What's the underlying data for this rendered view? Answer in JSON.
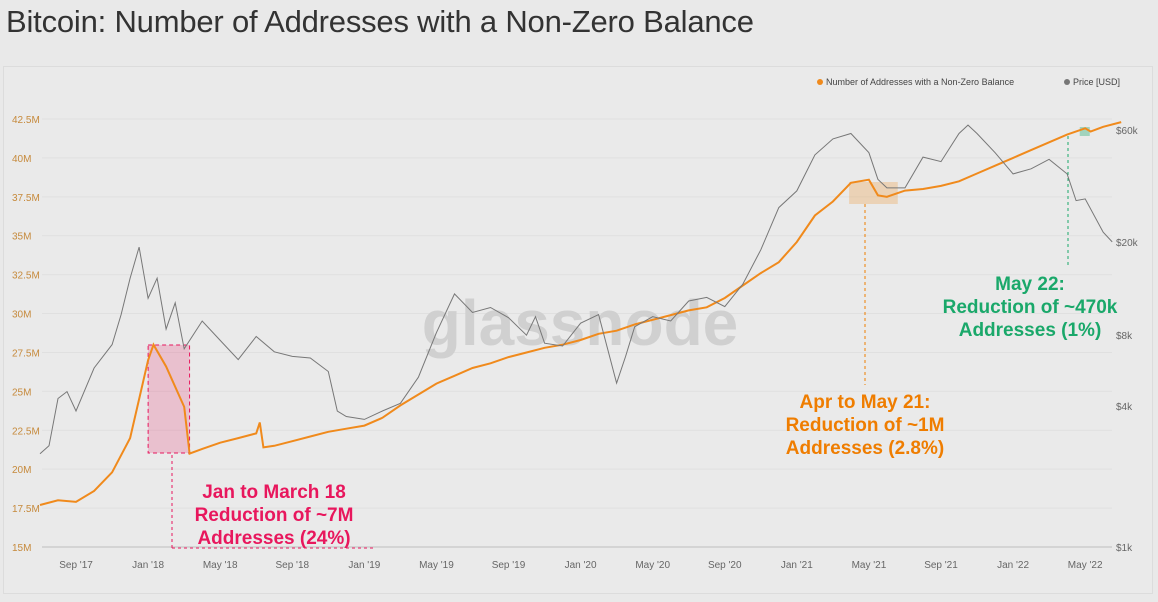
{
  "title": "Bitcoin: Number of Addresses with a Non-Zero Balance",
  "watermark": "glassnode",
  "chart_data": {
    "type": "line",
    "title": "Bitcoin: Number of Addresses with a Non-Zero Balance",
    "x_unit": "months since Jul 2017",
    "x_ticks": [
      {
        "m": 2,
        "label": "Sep '17"
      },
      {
        "m": 6,
        "label": "Jan '18"
      },
      {
        "m": 10,
        "label": "May '18"
      },
      {
        "m": 14,
        "label": "Sep '18"
      },
      {
        "m": 18,
        "label": "Jan '19"
      },
      {
        "m": 22,
        "label": "May '19"
      },
      {
        "m": 26,
        "label": "Sep '19"
      },
      {
        "m": 30,
        "label": "Jan '20"
      },
      {
        "m": 34,
        "label": "May '20"
      },
      {
        "m": 38,
        "label": "Sep '20"
      },
      {
        "m": 42,
        "label": "Jan '21"
      },
      {
        "m": 46,
        "label": "May '21"
      },
      {
        "m": 50,
        "label": "Sep '21"
      },
      {
        "m": 54,
        "label": "Jan '22"
      },
      {
        "m": 58,
        "label": "May '22"
      }
    ],
    "left_axis": {
      "ticks": [
        {
          "v": 15,
          "label": "15M"
        },
        {
          "v": 17.5,
          "label": "17.5M"
        },
        {
          "v": 20,
          "label": "20M"
        },
        {
          "v": 22.5,
          "label": "22.5M"
        },
        {
          "v": 25,
          "label": "25M"
        },
        {
          "v": 27.5,
          "label": "27.5M"
        },
        {
          "v": 30,
          "label": "30M"
        },
        {
          "v": 32.5,
          "label": "32.5M"
        },
        {
          "v": 35,
          "label": "35M"
        },
        {
          "v": 37.5,
          "label": "37.5M"
        },
        {
          "v": 40,
          "label": "40M"
        },
        {
          "v": 42.5,
          "label": "42.5M"
        }
      ],
      "range": [
        15,
        42.5
      ]
    },
    "right_axis": {
      "scale": "log",
      "ticks": [
        {
          "v": 1000,
          "label": "$1k"
        },
        {
          "v": 4000,
          "label": "$4k"
        },
        {
          "v": 8000,
          "label": "$8k"
        },
        {
          "v": 20000,
          "label": "$20k"
        },
        {
          "v": 60000,
          "label": "$60k"
        }
      ],
      "range": [
        1000,
        60000
      ]
    },
    "legend": [
      "Number of Addresses with a Non-Zero Balance",
      "Price [USD]"
    ],
    "legend_position": "top-right",
    "series": [
      {
        "name": "Number of Addresses with a Non-Zero Balance",
        "color": "#f08a1c",
        "axis": "left",
        "points": [
          [
            0,
            17.7
          ],
          [
            1,
            18.0
          ],
          [
            2,
            17.9
          ],
          [
            3,
            18.6
          ],
          [
            4,
            19.8
          ],
          [
            5,
            22.0
          ],
          [
            6,
            27.0
          ],
          [
            6.3,
            28.0
          ],
          [
            7,
            26.6
          ],
          [
            8,
            24.0
          ],
          [
            8.3,
            21.0
          ],
          [
            9,
            21.3
          ],
          [
            10,
            21.7
          ],
          [
            11,
            22.0
          ],
          [
            12,
            22.3
          ],
          [
            12.2,
            23.0
          ],
          [
            12.4,
            21.4
          ],
          [
            13,
            21.5
          ],
          [
            14,
            21.8
          ],
          [
            15,
            22.1
          ],
          [
            16,
            22.4
          ],
          [
            17,
            22.6
          ],
          [
            18,
            22.8
          ],
          [
            19,
            23.3
          ],
          [
            20,
            24.1
          ],
          [
            21,
            24.8
          ],
          [
            22,
            25.5
          ],
          [
            23,
            26.0
          ],
          [
            24,
            26.5
          ],
          [
            25,
            26.8
          ],
          [
            26,
            27.2
          ],
          [
            27,
            27.5
          ],
          [
            28,
            27.8
          ],
          [
            29,
            28.0
          ],
          [
            30,
            28.3
          ],
          [
            31,
            28.7
          ],
          [
            32,
            28.9
          ],
          [
            33,
            29.3
          ],
          [
            34,
            29.6
          ],
          [
            35,
            29.9
          ],
          [
            36,
            30.2
          ],
          [
            37,
            30.4
          ],
          [
            38,
            31.0
          ],
          [
            39,
            31.8
          ],
          [
            40,
            32.6
          ],
          [
            41,
            33.3
          ],
          [
            42,
            34.6
          ],
          [
            43,
            36.3
          ],
          [
            44,
            37.2
          ],
          [
            45,
            38.4
          ],
          [
            46,
            38.6
          ],
          [
            46.5,
            37.6
          ],
          [
            47,
            37.5
          ],
          [
            48,
            37.9
          ],
          [
            49,
            38.0
          ],
          [
            50,
            38.2
          ],
          [
            51,
            38.5
          ],
          [
            52,
            39.0
          ],
          [
            53,
            39.5
          ],
          [
            54,
            40.0
          ],
          [
            55,
            40.5
          ],
          [
            56,
            41.0
          ],
          [
            57,
            41.5
          ],
          [
            58,
            41.9
          ],
          [
            58.3,
            41.7
          ],
          [
            59,
            42.0
          ],
          [
            60,
            42.3
          ]
        ]
      },
      {
        "name": "Price [USD]",
        "color": "#777777",
        "axis": "right",
        "points": [
          [
            0,
            2500
          ],
          [
            0.5,
            2700
          ],
          [
            1,
            4300
          ],
          [
            1.5,
            4600
          ],
          [
            2,
            3800
          ],
          [
            3,
            5800
          ],
          [
            4,
            7300
          ],
          [
            4.5,
            9800
          ],
          [
            5,
            14000
          ],
          [
            5.5,
            19000
          ],
          [
            6,
            11500
          ],
          [
            6.5,
            14000
          ],
          [
            7,
            8500
          ],
          [
            7.5,
            11000
          ],
          [
            8,
            7000
          ],
          [
            9,
            9200
          ],
          [
            10,
            7600
          ],
          [
            11,
            6300
          ],
          [
            12,
            7900
          ],
          [
            13,
            6800
          ],
          [
            14,
            6500
          ],
          [
            15,
            6400
          ],
          [
            16,
            5600
          ],
          [
            16.5,
            3800
          ],
          [
            17,
            3600
          ],
          [
            18,
            3500
          ],
          [
            19,
            3800
          ],
          [
            20,
            4100
          ],
          [
            21,
            5300
          ],
          [
            22,
            8200
          ],
          [
            23,
            12000
          ],
          [
            24,
            10000
          ],
          [
            25,
            10500
          ],
          [
            26,
            9500
          ],
          [
            27,
            8000
          ],
          [
            27.5,
            9600
          ],
          [
            28,
            7400
          ],
          [
            29,
            7200
          ],
          [
            30,
            9000
          ],
          [
            31,
            9800
          ],
          [
            32,
            5000
          ],
          [
            32.5,
            6500
          ],
          [
            33,
            8700
          ],
          [
            34,
            9600
          ],
          [
            35,
            9200
          ],
          [
            36,
            11200
          ],
          [
            37,
            11600
          ],
          [
            38,
            10600
          ],
          [
            39,
            13200
          ],
          [
            40,
            18500
          ],
          [
            41,
            28000
          ],
          [
            42,
            33000
          ],
          [
            43,
            47000
          ],
          [
            44,
            55000
          ],
          [
            45,
            58000
          ],
          [
            46,
            48000
          ],
          [
            46.5,
            37000
          ],
          [
            47,
            34000
          ],
          [
            48,
            34000
          ],
          [
            49,
            46000
          ],
          [
            50,
            44000
          ],
          [
            51,
            58000
          ],
          [
            51.5,
            63000
          ],
          [
            52,
            58000
          ],
          [
            53,
            48000
          ],
          [
            54,
            39000
          ],
          [
            55,
            41000
          ],
          [
            56,
            45000
          ],
          [
            57,
            39000
          ],
          [
            57.5,
            30000
          ],
          [
            58,
            30500
          ],
          [
            59,
            22000
          ],
          [
            59.5,
            20000
          ]
        ]
      }
    ],
    "annotations": [
      {
        "text_lines": [
          "Jan to March 18",
          "Reduction of ~7M",
          "Addresses (24%)"
        ],
        "color": "#e8175d",
        "range_months": [
          6,
          8.3
        ]
      },
      {
        "text_lines": [
          "Apr to May 21:",
          "Reduction of ~1M",
          "Addresses (2.8%)"
        ],
        "color": "#ef7d00",
        "range_months": [
          45,
          47.5
        ]
      },
      {
        "text_lines": [
          "May 22:",
          "Reduction of ~470k",
          "Addresses (1%)"
        ],
        "color": "#1aa86a",
        "range_months": [
          57.8,
          58.3
        ]
      }
    ]
  }
}
